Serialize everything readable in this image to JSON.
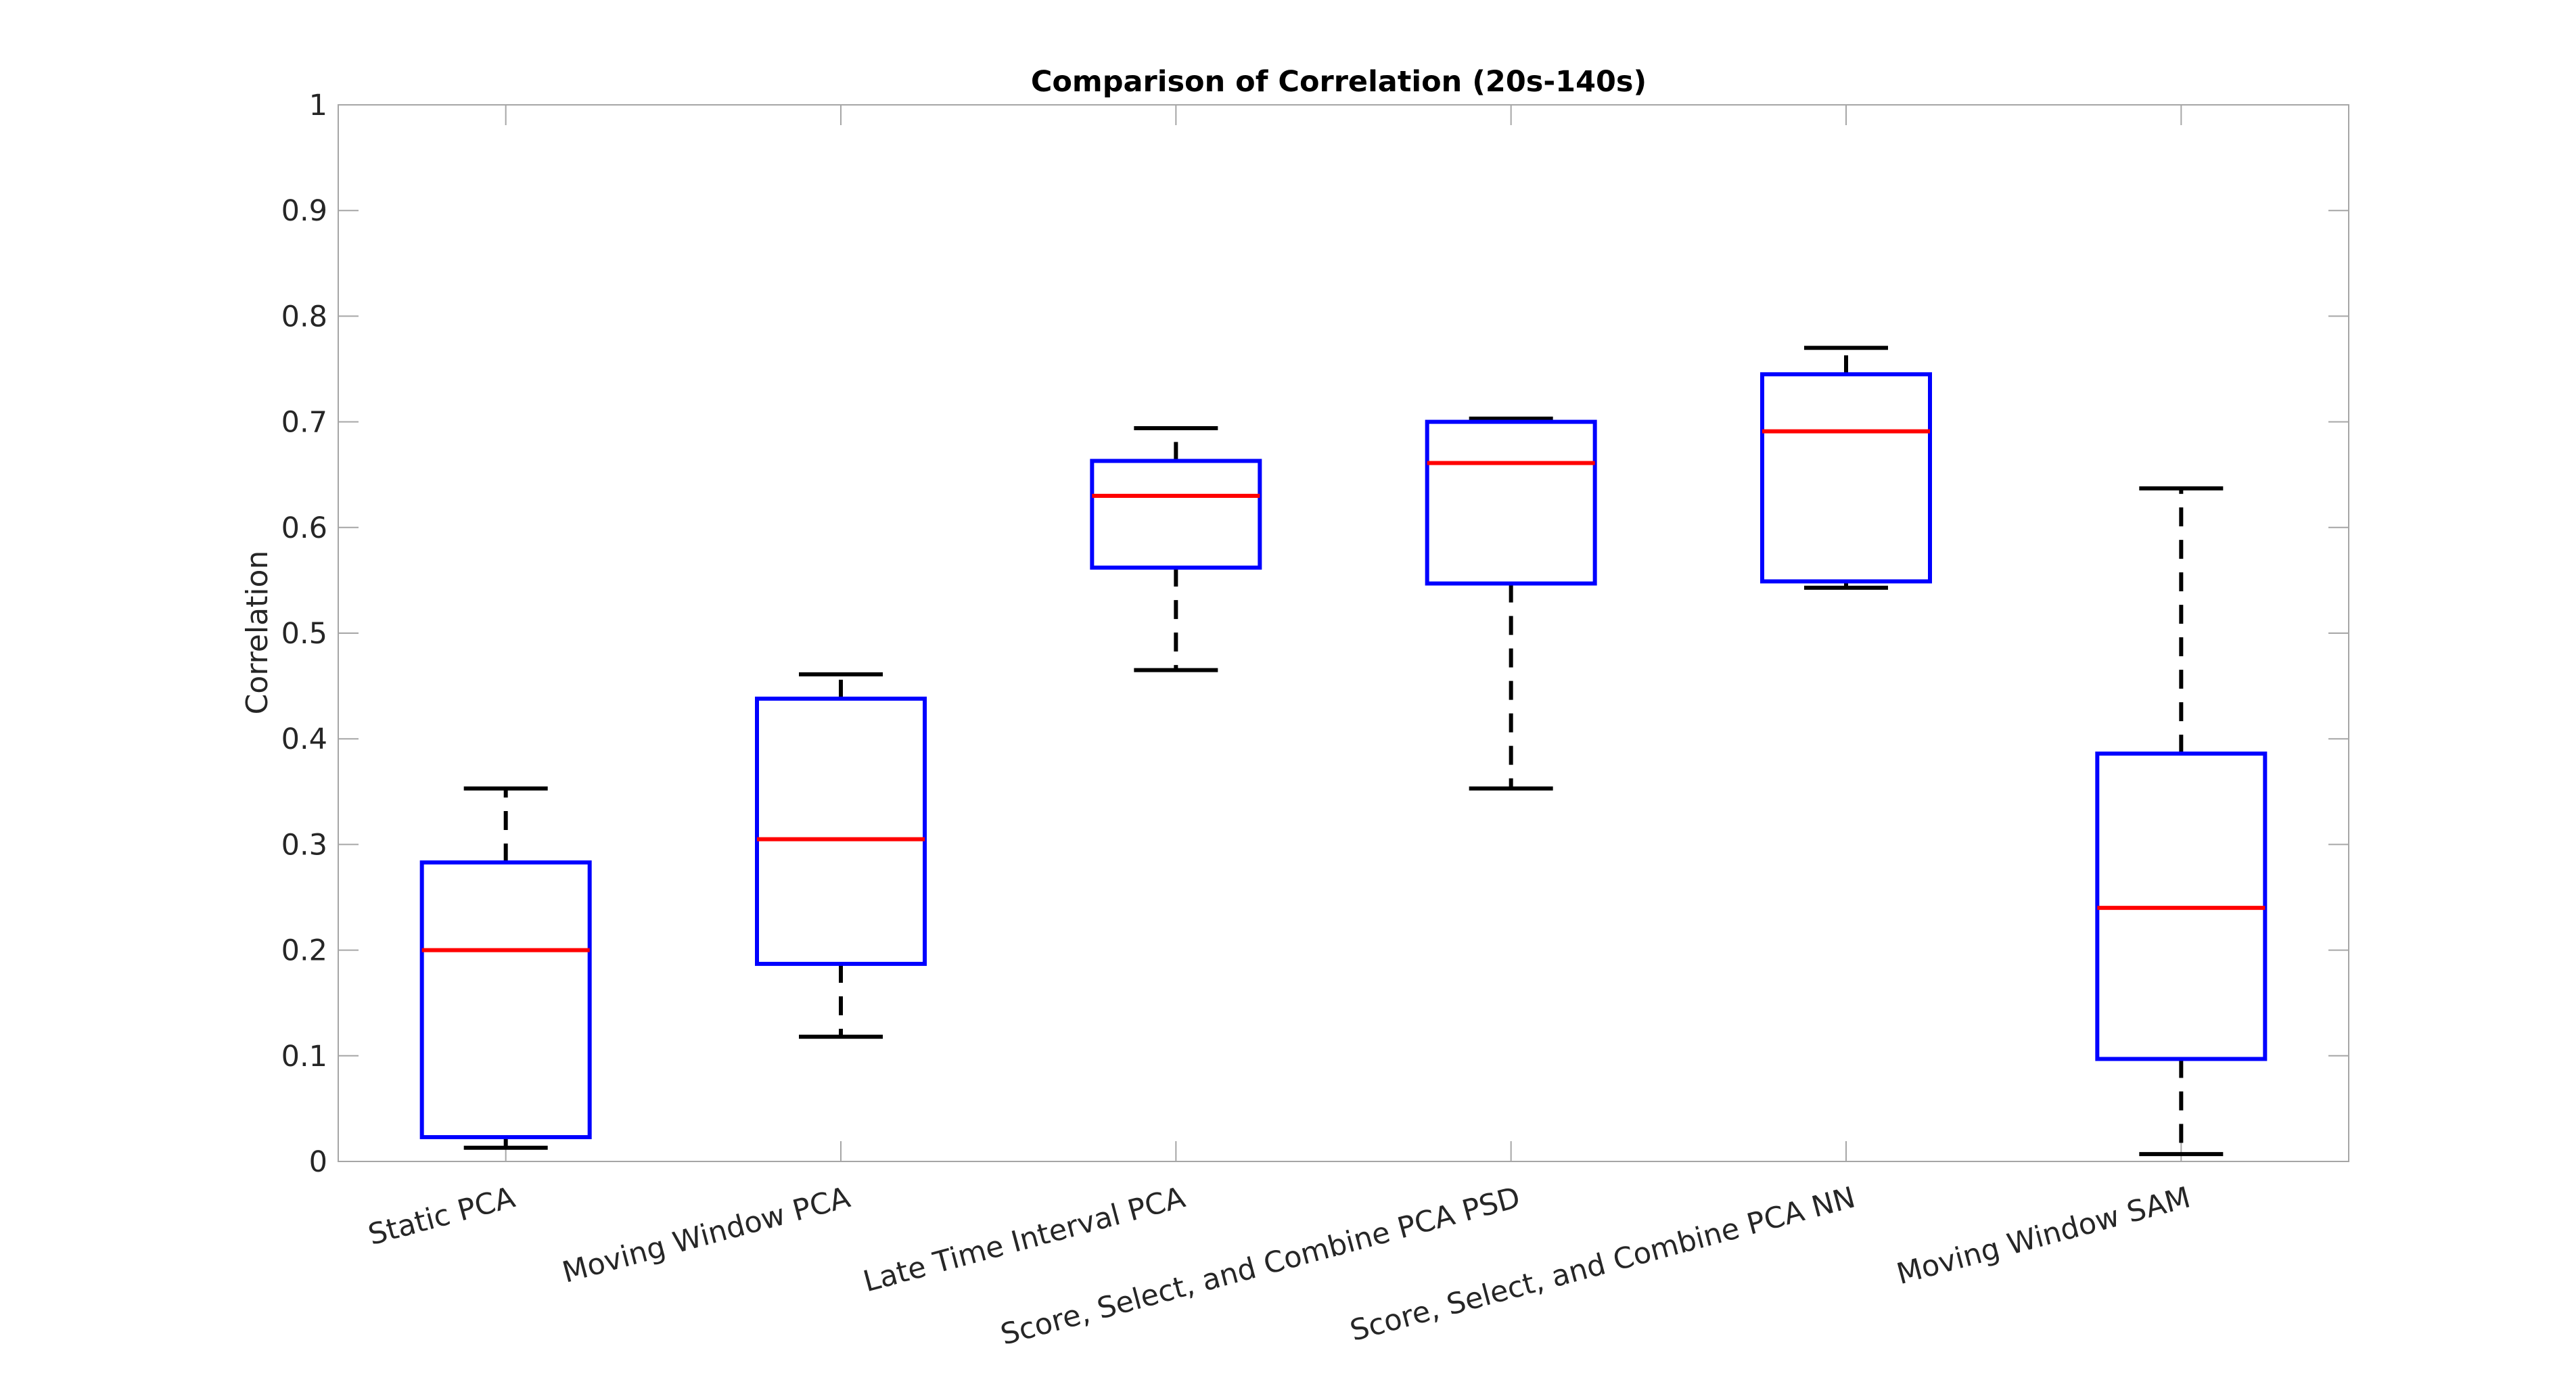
{
  "chart_data": {
    "type": "box",
    "title": "Comparison of Correlation (20s-140s)",
    "xlabel": "",
    "ylabel": "Correlation",
    "ylim": [
      0,
      1
    ],
    "yticks": [
      0,
      0.1,
      0.2,
      0.3,
      0.4,
      0.5,
      0.6,
      0.7,
      0.8,
      0.9,
      1
    ],
    "ytick_labels": [
      "0",
      "0.1",
      "0.2",
      "0.3",
      "0.4",
      "0.5",
      "0.6",
      "0.7",
      "0.8",
      "0.9",
      "1"
    ],
    "categories": [
      "Static PCA",
      "Moving Window PCA",
      "Late Time Interval PCA",
      "Score, Select, and Combine PCA PSD",
      "Score, Select, and Combine PCA NN",
      "Moving Window SAM"
    ],
    "boxes": [
      {
        "min": 0.013,
        "q1": 0.023,
        "median": 0.2,
        "q3": 0.283,
        "max": 0.353
      },
      {
        "min": 0.118,
        "q1": 0.187,
        "median": 0.305,
        "q3": 0.438,
        "max": 0.461
      },
      {
        "min": 0.465,
        "q1": 0.562,
        "median": 0.63,
        "q3": 0.663,
        "max": 0.694
      },
      {
        "min": 0.353,
        "q1": 0.547,
        "median": 0.661,
        "q3": 0.7,
        "max": 0.703
      },
      {
        "min": 0.543,
        "q1": 0.549,
        "median": 0.691,
        "q3": 0.745,
        "max": 0.77
      },
      {
        "min": 0.007,
        "q1": 0.097,
        "median": 0.24,
        "q3": 0.386,
        "max": 0.637
      }
    ],
    "grid": false,
    "colors": {
      "box": "#0000ff",
      "median": "#ff0000",
      "whisker": "#000000",
      "axes": "#262626",
      "frame": "#a6a6a6"
    }
  }
}
